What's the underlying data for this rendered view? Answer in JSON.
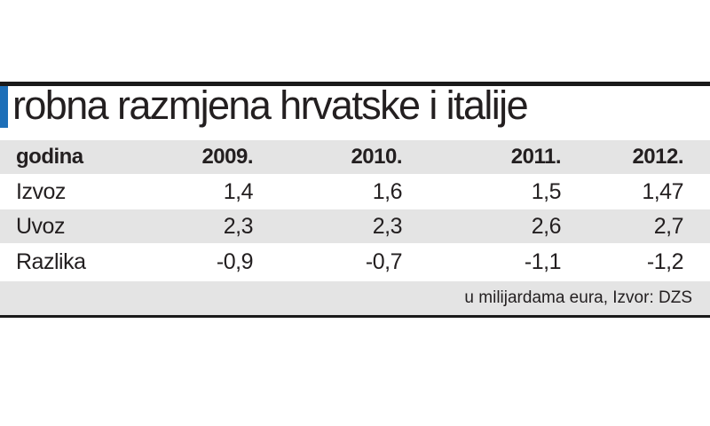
{
  "title": "robna razmjena hrvatske i italije",
  "table": {
    "header": [
      "godina",
      "2009.",
      "2010.",
      "2011.",
      "2012."
    ],
    "rows": [
      [
        "Izvoz",
        "1,4",
        "1,6",
        "1,5",
        "1,47"
      ],
      [
        "Uvoz",
        "2,3",
        "2,3",
        "2,6",
        "2,7"
      ],
      [
        "Razlika",
        "-0,9",
        "-0,7",
        "-1,1",
        "-1,2"
      ]
    ]
  },
  "note": "u milijardama eura, Izvor: DZS"
}
